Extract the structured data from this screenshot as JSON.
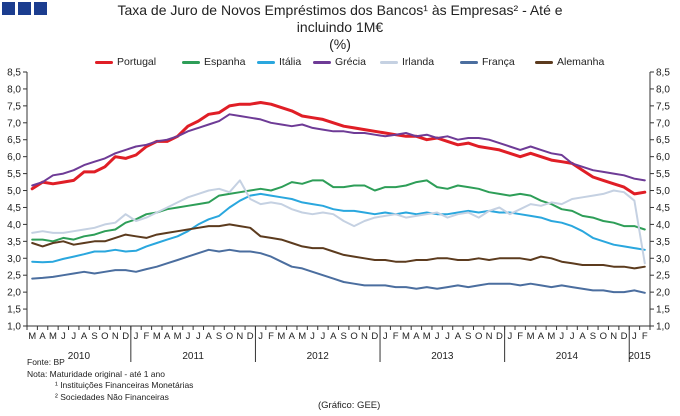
{
  "header": {
    "title_line1": "Taxa de Juro de Novos Empréstimos dos Bancos¹ às Empresas² - Até e",
    "title_line2": "incluindo 1M€",
    "title_line3": "(%)"
  },
  "footer": {
    "source": "Fonte: BP",
    "note": "Nota: Maturidade original - até 1 ano",
    "footnote1": "¹ Instituições Financeiras Monetárias",
    "footnote2": "² Sociedades Não Financeiras",
    "credit": "(Gráfico: GEE)"
  },
  "chart_data": {
    "type": "line",
    "title": "Taxa de Juro de Novos Empréstimos dos Bancos¹ às Empresas² - Até e incluindo 1M€ (%)",
    "xlabel": "",
    "ylabel": "%",
    "ylim": [
      1.0,
      8.5
    ],
    "ytick_step": 0.5,
    "yticks": [
      "1,0",
      "1,5",
      "2,0",
      "2,5",
      "3,0",
      "3,5",
      "4,0",
      "4,5",
      "5,0",
      "5,5",
      "6,0",
      "6,5",
      "7,0",
      "7,5",
      "8,0",
      "8,5"
    ],
    "month_labels": [
      "M",
      "A",
      "M",
      "J",
      "J",
      "A",
      "S",
      "O",
      "N",
      "D",
      "J",
      "F",
      "M",
      "A",
      "M",
      "J",
      "J",
      "A",
      "S",
      "O",
      "N",
      "D",
      "J",
      "F",
      "M",
      "A",
      "M",
      "J",
      "J",
      "A",
      "S",
      "O",
      "N",
      "D",
      "J",
      "F",
      "M",
      "A",
      "M",
      "J",
      "J",
      "A",
      "S",
      "O",
      "N",
      "D",
      "J",
      "F",
      "M",
      "A",
      "M",
      "J",
      "J",
      "A",
      "S",
      "O",
      "N",
      "D",
      "J",
      "F"
    ],
    "years": [
      {
        "label": "2010",
        "start": 0,
        "end": 9
      },
      {
        "label": "2011",
        "start": 10,
        "end": 21
      },
      {
        "label": "2012",
        "start": 22,
        "end": 33
      },
      {
        "label": "2013",
        "start": 34,
        "end": 45
      },
      {
        "label": "2014",
        "start": 46,
        "end": 57
      },
      {
        "label": "2015",
        "start": 58,
        "end": 59
      }
    ],
    "legend_position": "top",
    "grid": false,
    "series": [
      {
        "name": "Portugal",
        "color": "#e01e26",
        "width": 3,
        "values": [
          5.05,
          5.25,
          5.2,
          5.25,
          5.3,
          5.55,
          5.55,
          5.7,
          6.0,
          5.95,
          6.05,
          6.3,
          6.45,
          6.45,
          6.6,
          6.9,
          7.05,
          7.25,
          7.3,
          7.5,
          7.55,
          7.55,
          7.6,
          7.55,
          7.45,
          7.35,
          7.2,
          7.15,
          7.1,
          7.0,
          6.9,
          6.85,
          6.8,
          6.75,
          6.7,
          6.65,
          6.6,
          6.6,
          6.5,
          6.55,
          6.45,
          6.35,
          6.4,
          6.3,
          6.25,
          6.2,
          6.1,
          6.0,
          6.1,
          6.0,
          5.9,
          5.85,
          5.8,
          5.6,
          5.4,
          5.3,
          5.2,
          5.1,
          4.9,
          4.95
        ]
      },
      {
        "name": "Espanha",
        "color": "#2e9e58",
        "width": 2,
        "values": [
          3.55,
          3.55,
          3.5,
          3.6,
          3.55,
          3.65,
          3.7,
          3.8,
          3.85,
          4.05,
          4.15,
          4.3,
          4.35,
          4.45,
          4.5,
          4.55,
          4.6,
          4.65,
          4.85,
          4.9,
          4.95,
          5.0,
          5.05,
          5.0,
          5.1,
          5.25,
          5.2,
          5.3,
          5.3,
          5.1,
          5.1,
          5.15,
          5.15,
          5.0,
          5.1,
          5.1,
          5.15,
          5.25,
          5.3,
          5.1,
          5.05,
          5.15,
          5.1,
          5.05,
          4.95,
          4.9,
          4.85,
          4.9,
          4.85,
          4.7,
          4.6,
          4.45,
          4.4,
          4.25,
          4.2,
          4.1,
          4.05,
          3.95,
          3.95,
          3.85
        ]
      },
      {
        "name": "Itália",
        "color": "#2aa7de",
        "width": 2,
        "values": [
          2.9,
          2.88,
          2.9,
          2.98,
          3.05,
          3.12,
          3.2,
          3.2,
          3.25,
          3.2,
          3.22,
          3.35,
          3.45,
          3.55,
          3.65,
          3.8,
          4.0,
          4.15,
          4.25,
          4.5,
          4.7,
          4.85,
          4.9,
          4.85,
          4.8,
          4.75,
          4.65,
          4.6,
          4.55,
          4.45,
          4.4,
          4.4,
          4.35,
          4.3,
          4.35,
          4.3,
          4.35,
          4.3,
          4.35,
          4.3,
          4.3,
          4.35,
          4.4,
          4.35,
          4.4,
          4.35,
          4.35,
          4.3,
          4.25,
          4.2,
          4.1,
          4.05,
          3.95,
          3.8,
          3.6,
          3.5,
          3.4,
          3.35,
          3.3,
          3.25
        ]
      },
      {
        "name": "Grécia",
        "color": "#6e3b96",
        "width": 2,
        "values": [
          5.15,
          5.25,
          5.45,
          5.5,
          5.6,
          5.75,
          5.85,
          5.95,
          6.1,
          6.2,
          6.3,
          6.35,
          6.45,
          6.5,
          6.6,
          6.75,
          6.85,
          6.95,
          7.05,
          7.25,
          7.2,
          7.15,
          7.1,
          7.0,
          6.95,
          6.9,
          6.95,
          6.85,
          6.8,
          6.75,
          6.75,
          6.7,
          6.7,
          6.65,
          6.6,
          6.65,
          6.7,
          6.6,
          6.65,
          6.55,
          6.6,
          6.5,
          6.55,
          6.55,
          6.5,
          6.4,
          6.3,
          6.2,
          6.3,
          6.2,
          6.1,
          6.05,
          5.8,
          5.7,
          5.6,
          5.55,
          5.5,
          5.45,
          5.35,
          5.3
        ]
      },
      {
        "name": "Irlanda",
        "color": "#c5d1e2",
        "width": 2,
        "values": [
          3.75,
          3.8,
          3.75,
          3.75,
          3.8,
          3.85,
          3.9,
          4.0,
          4.05,
          4.3,
          4.1,
          4.2,
          4.35,
          4.5,
          4.65,
          4.8,
          4.9,
          5.0,
          5.05,
          4.95,
          5.3,
          4.75,
          4.6,
          4.65,
          4.6,
          4.45,
          4.35,
          4.3,
          4.35,
          4.3,
          4.1,
          3.95,
          4.1,
          4.2,
          4.25,
          4.3,
          4.2,
          4.25,
          4.3,
          4.35,
          4.2,
          4.3,
          4.35,
          4.2,
          4.4,
          4.5,
          4.3,
          4.45,
          4.6,
          4.55,
          4.65,
          4.6,
          4.75,
          4.8,
          4.85,
          4.9,
          5.0,
          4.95,
          4.7,
          2.85
        ]
      },
      {
        "name": "França",
        "color": "#4b6e9f",
        "width": 2,
        "values": [
          2.4,
          2.42,
          2.45,
          2.5,
          2.55,
          2.6,
          2.55,
          2.6,
          2.65,
          2.65,
          2.6,
          2.68,
          2.75,
          2.85,
          2.95,
          3.05,
          3.15,
          3.25,
          3.2,
          3.25,
          3.2,
          3.2,
          3.15,
          3.05,
          2.9,
          2.75,
          2.7,
          2.6,
          2.5,
          2.4,
          2.3,
          2.25,
          2.2,
          2.2,
          2.2,
          2.15,
          2.15,
          2.1,
          2.15,
          2.1,
          2.15,
          2.2,
          2.15,
          2.2,
          2.25,
          2.25,
          2.25,
          2.2,
          2.25,
          2.2,
          2.15,
          2.2,
          2.15,
          2.1,
          2.05,
          2.05,
          2.0,
          2.0,
          2.05,
          1.98
        ]
      },
      {
        "name": "Alemanha",
        "color": "#5c3b1e",
        "width": 2,
        "values": [
          3.45,
          3.35,
          3.45,
          3.5,
          3.4,
          3.45,
          3.5,
          3.5,
          3.6,
          3.7,
          3.65,
          3.6,
          3.7,
          3.75,
          3.8,
          3.85,
          3.9,
          3.95,
          3.95,
          4.0,
          3.95,
          3.9,
          3.65,
          3.6,
          3.55,
          3.45,
          3.35,
          3.3,
          3.3,
          3.2,
          3.1,
          3.05,
          3.0,
          2.95,
          2.95,
          2.9,
          2.9,
          2.95,
          2.95,
          3.0,
          3.0,
          2.95,
          2.95,
          3.0,
          2.95,
          3.0,
          3.0,
          3.0,
          2.95,
          3.05,
          3.0,
          2.9,
          2.85,
          2.8,
          2.8,
          2.8,
          2.75,
          2.75,
          2.7,
          2.75
        ]
      }
    ]
  }
}
